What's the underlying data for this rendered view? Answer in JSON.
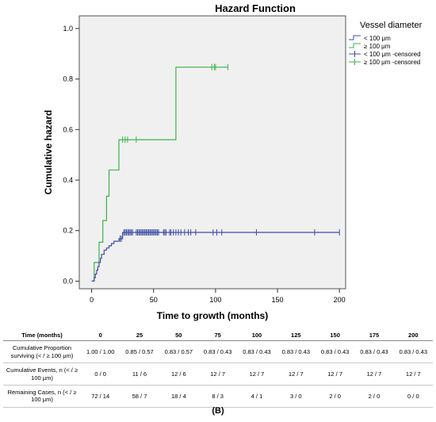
{
  "chart_data": {
    "type": "line",
    "step": true,
    "title": "Hazard Function",
    "xlabel": "Time to growth (months)",
    "ylabel": "Cumulative hazard",
    "xlim": [
      -10,
      205
    ],
    "ylim": [
      -0.03,
      1.05
    ],
    "xticks": [
      0,
      50,
      100,
      150,
      200
    ],
    "yticks": [
      0.0,
      0.2,
      0.4,
      0.6,
      0.8,
      1.0
    ],
    "ytick_labels": [
      "0.0",
      "0.2",
      "0.4",
      "0.6",
      "0.8",
      "1.0"
    ],
    "grid": false,
    "plot_background": "#f0f0f0",
    "legend": {
      "title": "Vessel diameter",
      "placement": "right",
      "entries": [
        {
          "label": "< 100 μm",
          "marker": "line",
          "color": "#3d4ea5"
        },
        {
          "label": "≥ 100 μm",
          "marker": "line",
          "color": "#3cb34a"
        },
        {
          "label": "< 100 μm -censored",
          "marker": "cross",
          "color": "#3d4ea5"
        },
        {
          "label": "≥ 100 μm -censored",
          "marker": "cross",
          "color": "#3cb34a"
        }
      ]
    },
    "series": [
      {
        "name": "< 100 μm",
        "color": "#3d4ea5",
        "x": [
          0,
          2,
          3,
          4,
          5,
          6,
          7,
          8,
          10,
          12,
          14,
          16,
          18,
          20,
          22,
          25,
          200
        ],
        "y": [
          0.0,
          0.014,
          0.028,
          0.043,
          0.058,
          0.074,
          0.09,
          0.106,
          0.123,
          0.131,
          0.14,
          0.149,
          0.158,
          0.158,
          0.168,
          0.193,
          0.193
        ],
        "censored_x": [
          23,
          24,
          26,
          27,
          28,
          29,
          30,
          31,
          32,
          33,
          36,
          37,
          38,
          39,
          40,
          41,
          42,
          43,
          44,
          45,
          46,
          47,
          48,
          49,
          50,
          51,
          52,
          53,
          54,
          58,
          59,
          60,
          63,
          64,
          66,
          68,
          70,
          72,
          75,
          78,
          80,
          84,
          98,
          101,
          105,
          133,
          180,
          200
        ]
      },
      {
        "name": "≥ 100 μm",
        "color": "#3cb34a",
        "x": [
          0,
          2,
          4,
          6,
          9,
          12,
          14,
          16,
          22,
          68,
          110
        ],
        "y": [
          0.0,
          0.074,
          0.074,
          0.154,
          0.24,
          0.336,
          0.44,
          0.44,
          0.56,
          0.847,
          0.847
        ],
        "censored_x": [
          25,
          27,
          29,
          36,
          97,
          99,
          100,
          110
        ]
      }
    ]
  },
  "table": {
    "header_label": "Time (months)",
    "times": [
      "0",
      "25",
      "50",
      "75",
      "100",
      "125",
      "150",
      "175",
      "200"
    ],
    "rows": [
      {
        "label": "Cumulative Proportion surviving (< / ≥ 100 μm)",
        "values": [
          "1.00 / 1.00",
          "0.85 / 0.57",
          "0.83 / 0.57",
          "0.83 / 0.43",
          "0.83 / 0.43",
          "0.83 / 0.43",
          "0.83 / 0.43",
          "0.83 / 0.43",
          "0.83 / 0.43"
        ]
      },
      {
        "label": "Cumulative Events, n (< / ≥ 100 μm)",
        "values": [
          "0 / 0",
          "11 / 6",
          "12 / 6",
          "12 / 7",
          "12 / 7",
          "12 / 7",
          "12 / 7",
          "12 / 7",
          "12 / 7"
        ]
      },
      {
        "label": "Remaining Cases, n (< / ≥ 100 μm)",
        "values": [
          "72 / 14",
          "58 / 7",
          "18 / 4",
          "8 / 3",
          "4 / 1",
          "3 / 0",
          "2 / 0",
          "2 / 0",
          "0 / 0"
        ]
      }
    ]
  },
  "panel_label": "(B)"
}
